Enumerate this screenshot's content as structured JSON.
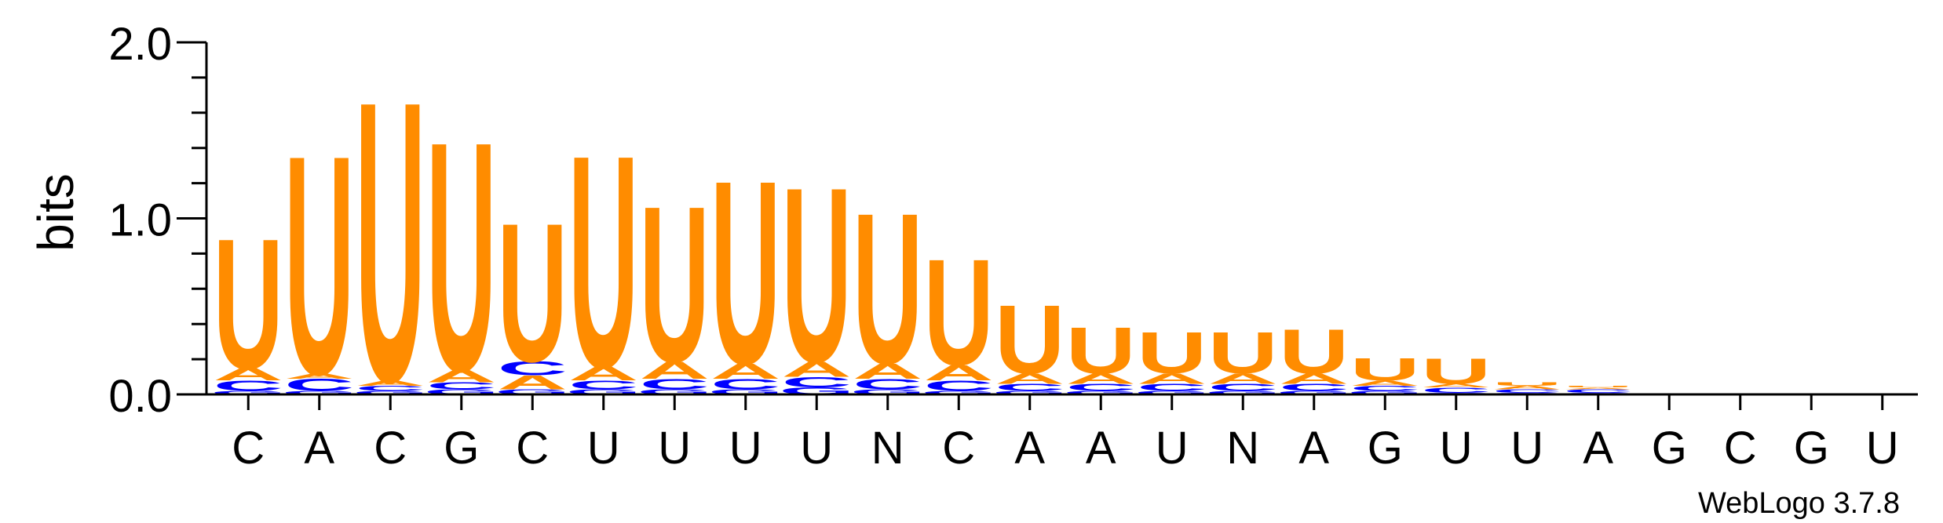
{
  "chart_data": {
    "type": "sequence-logo",
    "ylabel": "bits",
    "ylim": [
      0.0,
      2.0
    ],
    "yticks": [
      "0.0",
      "1.0",
      "2.0"
    ],
    "positions": [
      "C",
      "A",
      "C",
      "G",
      "C",
      "U",
      "U",
      "U",
      "U",
      "N",
      "C",
      "A",
      "A",
      "U",
      "N",
      "A",
      "G",
      "U",
      "U",
      "A",
      "G",
      "C",
      "G",
      "U"
    ],
    "colors": {
      "U": "#ff8c00",
      "A": "#ff8c00",
      "C": "#0000ff",
      "G": "#0000ff"
    },
    "stacks": [
      [
        {
          "l": "G",
          "h": 0.02
        },
        {
          "l": "C",
          "h": 0.06
        },
        {
          "l": "A",
          "h": 0.07
        },
        {
          "l": "U",
          "h": 0.76
        }
      ],
      [
        {
          "l": "G",
          "h": 0.02
        },
        {
          "l": "C",
          "h": 0.07
        },
        {
          "l": "A",
          "h": 0.03
        },
        {
          "l": "U",
          "h": 1.28
        }
      ],
      [
        {
          "l": "G",
          "h": 0.02
        },
        {
          "l": "C",
          "h": 0.03
        },
        {
          "l": "A",
          "h": 0.03
        },
        {
          "l": "U",
          "h": 1.64
        }
      ],
      [
        {
          "l": "G",
          "h": 0.03
        },
        {
          "l": "C",
          "h": 0.04
        },
        {
          "l": "A",
          "h": 0.07
        },
        {
          "l": "U",
          "h": 1.34
        }
      ],
      [
        {
          "l": "G",
          "h": 0.03
        },
        {
          "l": "A",
          "h": 0.08
        },
        {
          "l": "C",
          "h": 0.08
        },
        {
          "l": "U",
          "h": 0.81
        }
      ],
      [
        {
          "l": "G",
          "h": 0.03
        },
        {
          "l": "C",
          "h": 0.05
        },
        {
          "l": "A",
          "h": 0.08
        },
        {
          "l": "U",
          "h": 1.24
        }
      ],
      [
        {
          "l": "G",
          "h": 0.03
        },
        {
          "l": "C",
          "h": 0.06
        },
        {
          "l": "A",
          "h": 0.1
        },
        {
          "l": "U",
          "h": 0.91
        }
      ],
      [
        {
          "l": "G",
          "h": 0.03
        },
        {
          "l": "C",
          "h": 0.06
        },
        {
          "l": "A",
          "h": 0.09
        },
        {
          "l": "U",
          "h": 1.07
        }
      ],
      [
        {
          "l": "G",
          "h": 0.04
        },
        {
          "l": "C",
          "h": 0.06
        },
        {
          "l": "A",
          "h": 0.09
        },
        {
          "l": "U",
          "h": 1.02
        }
      ],
      [
        {
          "l": "G",
          "h": 0.03
        },
        {
          "l": "C",
          "h": 0.06
        },
        {
          "l": "A",
          "h": 0.09
        },
        {
          "l": "U",
          "h": 0.88
        }
      ],
      [
        {
          "l": "G",
          "h": 0.02
        },
        {
          "l": "C",
          "h": 0.06
        },
        {
          "l": "A",
          "h": 0.09
        },
        {
          "l": "U",
          "h": 0.62
        }
      ],
      [
        {
          "l": "G",
          "h": 0.02
        },
        {
          "l": "C",
          "h": 0.04
        },
        {
          "l": "A",
          "h": 0.06
        },
        {
          "l": "U",
          "h": 0.4
        }
      ],
      [
        {
          "l": "G",
          "h": 0.02
        },
        {
          "l": "C",
          "h": 0.04
        },
        {
          "l": "A",
          "h": 0.06
        },
        {
          "l": "U",
          "h": 0.27
        }
      ],
      [
        {
          "l": "G",
          "h": 0.02
        },
        {
          "l": "C",
          "h": 0.04
        },
        {
          "l": "A",
          "h": 0.06
        },
        {
          "l": "U",
          "h": 0.24
        }
      ],
      [
        {
          "l": "G",
          "h": 0.02
        },
        {
          "l": "C",
          "h": 0.04
        },
        {
          "l": "A",
          "h": 0.06
        },
        {
          "l": "U",
          "h": 0.24
        }
      ],
      [
        {
          "l": "G",
          "h": 0.02
        },
        {
          "l": "C",
          "h": 0.04
        },
        {
          "l": "A",
          "h": 0.06
        },
        {
          "l": "U",
          "h": 0.26
        }
      ],
      [
        {
          "l": "G",
          "h": 0.02
        },
        {
          "l": "C",
          "h": 0.03
        },
        {
          "l": "A",
          "h": 0.03
        },
        {
          "l": "U",
          "h": 0.13
        }
      ],
      [
        {
          "l": "G",
          "h": 0.01
        },
        {
          "l": "C",
          "h": 0.03
        },
        {
          "l": "A",
          "h": 0.02
        },
        {
          "l": "U",
          "h": 0.15
        }
      ],
      [
        {
          "l": "G",
          "h": 0.01
        },
        {
          "l": "C",
          "h": 0.02
        },
        {
          "l": "A",
          "h": 0.02
        },
        {
          "l": "U",
          "h": 0.02
        }
      ],
      [
        {
          "l": "G",
          "h": 0.01
        },
        {
          "l": "C",
          "h": 0.02
        },
        {
          "l": "A",
          "h": 0.01
        },
        {
          "l": "U",
          "h": 0.01
        }
      ],
      [],
      [],
      [],
      []
    ]
  },
  "credit": "WebLogo 3.7.8"
}
